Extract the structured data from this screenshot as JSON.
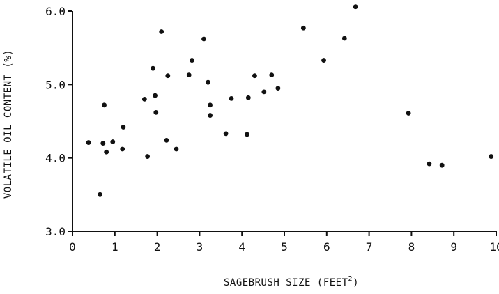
{
  "chart_data": {
    "type": "scatter",
    "title": "",
    "xlabel": "SAGEBRUSH SIZE (FEET",
    "xlabel_superscript": "2",
    "xlabel_close": ")",
    "ylabel": "VOLATILE OIL CONTENT (%)",
    "xlim": [
      0,
      10
    ],
    "ylim": [
      3.0,
      6.0
    ],
    "x_ticks": [
      "0",
      "1",
      "2",
      "3",
      "4",
      "5",
      "6",
      "7",
      "8",
      "9",
      "10"
    ],
    "y_ticks": [
      "3.0",
      "4.0",
      "5.0",
      "6.0"
    ],
    "grid": false,
    "legend": "none",
    "colors": {
      "points": "#111111",
      "axes": "#111111"
    },
    "series": [
      {
        "points": [
          {
            "x": 0.38,
            "y": 4.21
          },
          {
            "x": 0.65,
            "y": 3.5
          },
          {
            "x": 0.72,
            "y": 4.2
          },
          {
            "x": 0.75,
            "y": 4.72
          },
          {
            "x": 0.8,
            "y": 4.08
          },
          {
            "x": 0.95,
            "y": 4.22
          },
          {
            "x": 1.18,
            "y": 4.12
          },
          {
            "x": 1.2,
            "y": 4.42
          },
          {
            "x": 1.7,
            "y": 4.8
          },
          {
            "x": 1.77,
            "y": 4.02
          },
          {
            "x": 1.9,
            "y": 5.22
          },
          {
            "x": 1.95,
            "y": 4.85
          },
          {
            "x": 1.97,
            "y": 4.62
          },
          {
            "x": 2.1,
            "y": 5.72
          },
          {
            "x": 2.22,
            "y": 4.24
          },
          {
            "x": 2.25,
            "y": 5.12
          },
          {
            "x": 2.45,
            "y": 4.12
          },
          {
            "x": 2.75,
            "y": 5.13
          },
          {
            "x": 2.82,
            "y": 5.33
          },
          {
            "x": 3.1,
            "y": 5.62
          },
          {
            "x": 3.2,
            "y": 5.03
          },
          {
            "x": 3.25,
            "y": 4.72
          },
          {
            "x": 3.25,
            "y": 4.58
          },
          {
            "x": 3.62,
            "y": 4.33
          },
          {
            "x": 3.75,
            "y": 4.81
          },
          {
            "x": 4.12,
            "y": 4.32
          },
          {
            "x": 4.15,
            "y": 4.82
          },
          {
            "x": 4.3,
            "y": 5.12
          },
          {
            "x": 4.52,
            "y": 4.9
          },
          {
            "x": 4.7,
            "y": 5.13
          },
          {
            "x": 4.85,
            "y": 4.95
          },
          {
            "x": 5.45,
            "y": 5.77
          },
          {
            "x": 5.93,
            "y": 5.33
          },
          {
            "x": 6.42,
            "y": 5.63
          },
          {
            "x": 6.68,
            "y": 6.06
          },
          {
            "x": 7.93,
            "y": 4.61
          },
          {
            "x": 8.42,
            "y": 3.92
          },
          {
            "x": 8.72,
            "y": 3.9
          },
          {
            "x": 9.88,
            "y": 4.02
          }
        ]
      }
    ]
  }
}
